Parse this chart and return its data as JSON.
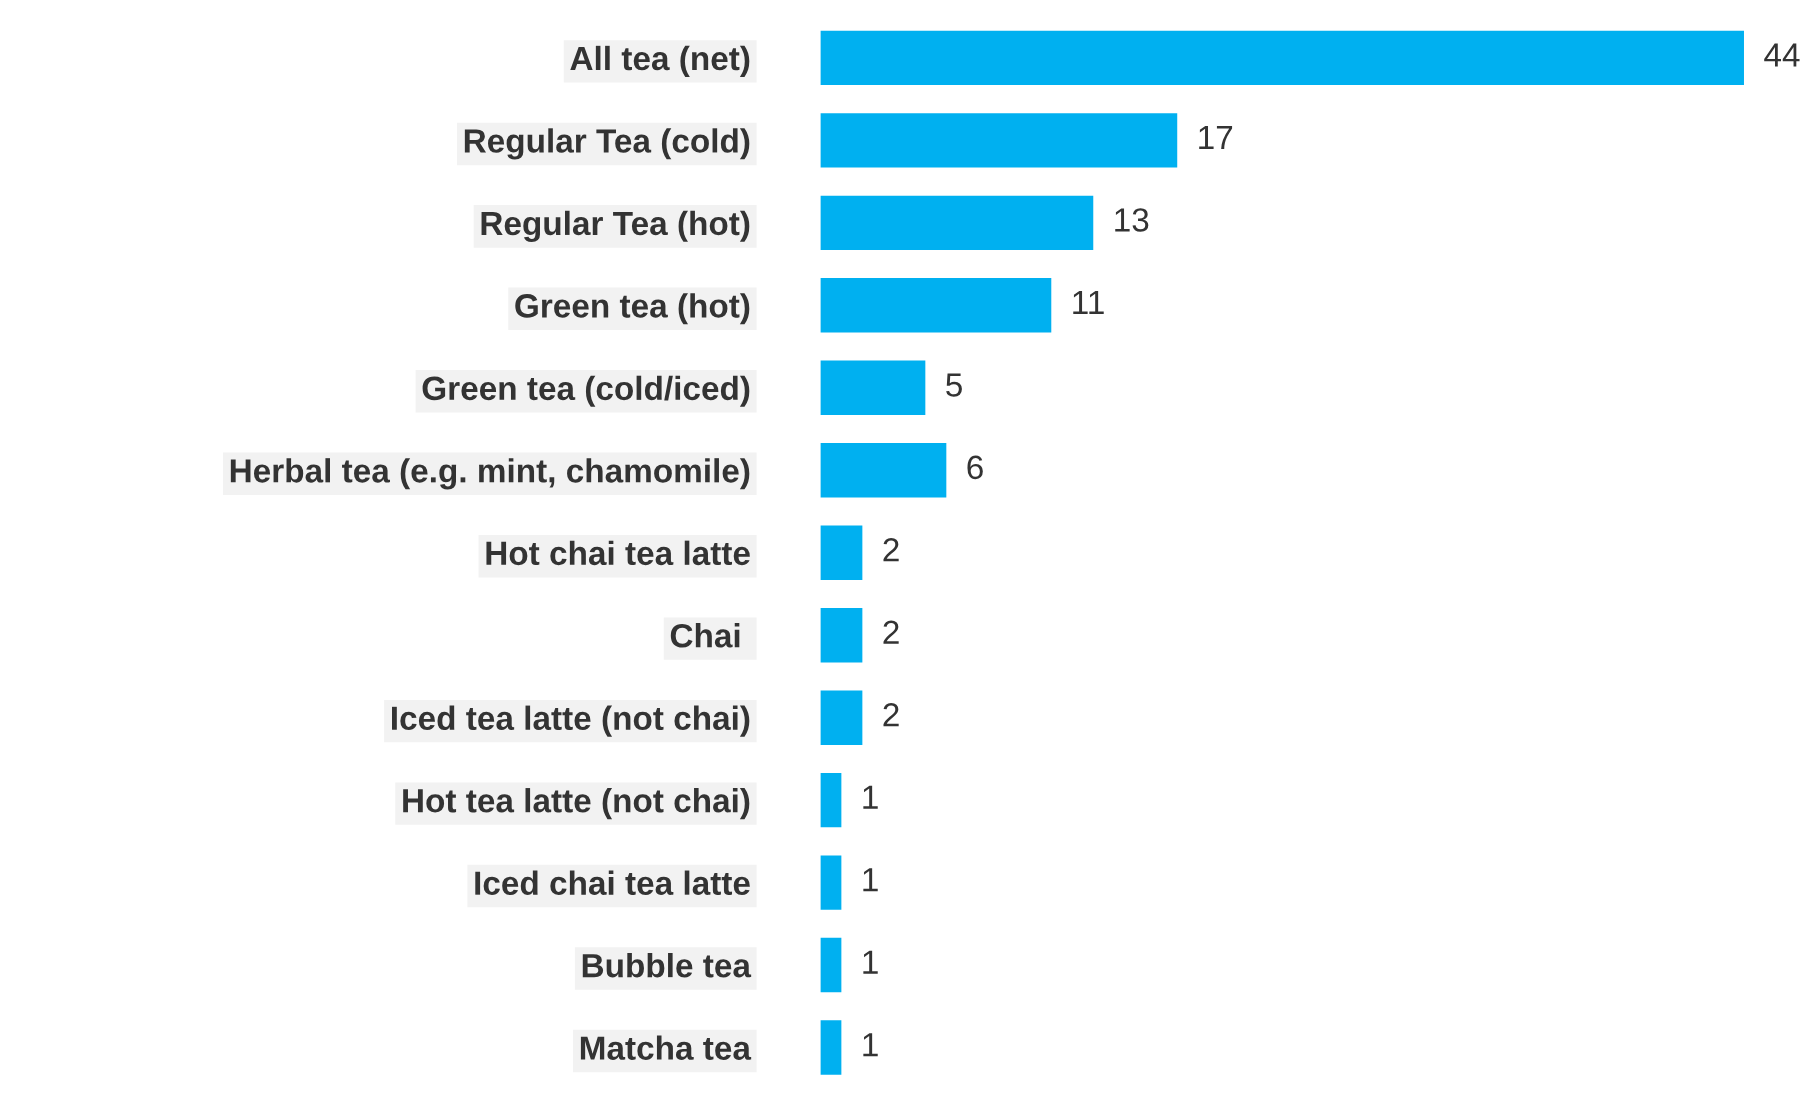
{
  "chart_data": {
    "type": "bar",
    "orientation": "horizontal",
    "categories": [
      "All tea (net)",
      "Regular Tea (cold)",
      "Regular Tea (hot)",
      "Green tea (hot)",
      "Green tea (cold/iced)",
      "Herbal tea (e.g. mint, chamomile)",
      "Hot chai tea latte",
      "Chai ",
      "Iced tea latte (not chai)",
      "Hot tea latte (not chai)",
      "Iced chai tea latte",
      "Bubble tea",
      "Matcha tea"
    ],
    "values": [
      44,
      17,
      13,
      11,
      5,
      6,
      2,
      2,
      2,
      1,
      1,
      1,
      1
    ],
    "color": "#00b0f0",
    "data_labels": true,
    "tick_labels": "y",
    "grid": false,
    "legend": false
  }
}
